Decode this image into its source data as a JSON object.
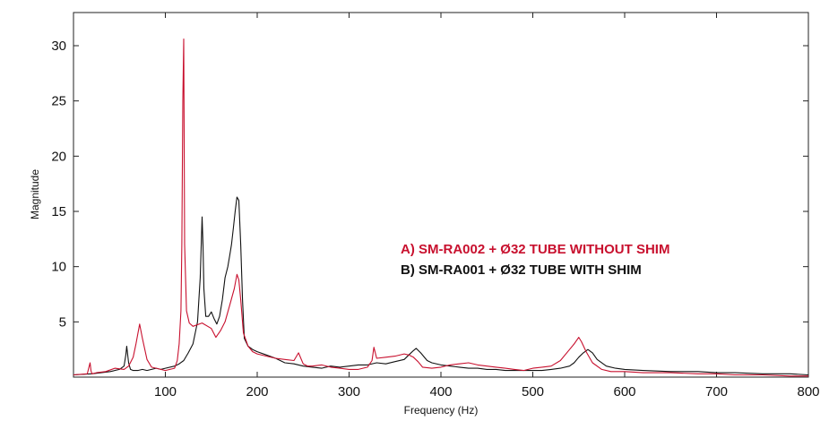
{
  "chart_data": {
    "type": "line",
    "title": "",
    "xlabel": "Frequency (Hz)",
    "ylabel": "Magnitude",
    "xlim": [
      0,
      800
    ],
    "ylim": [
      0,
      33
    ],
    "x_ticks": [
      100,
      200,
      300,
      400,
      500,
      600,
      700,
      800
    ],
    "y_ticks": [
      5,
      10,
      15,
      20,
      25,
      30
    ],
    "grid": false,
    "legend_position": "center-right",
    "series": [
      {
        "name": "A) SM-RA002 + Ø32 TUBE WITHOUT SHIM",
        "color": "#c8102e",
        "x": [
          0,
          15,
          18,
          19,
          20,
          25,
          35,
          45,
          55,
          60,
          65,
          68,
          72,
          75,
          80,
          85,
          90,
          95,
          100,
          105,
          110,
          113,
          115,
          117,
          118,
          119,
          120,
          121,
          123,
          126,
          130,
          140,
          150,
          155,
          160,
          165,
          170,
          175,
          178,
          180,
          182,
          185,
          190,
          195,
          200,
          210,
          220,
          230,
          240,
          245,
          250,
          255,
          260,
          270,
          280,
          290,
          300,
          310,
          320,
          325,
          327,
          330,
          340,
          350,
          360,
          365,
          370,
          375,
          380,
          390,
          400,
          410,
          420,
          430,
          440,
          450,
          460,
          470,
          480,
          490,
          500,
          510,
          520,
          530,
          540,
          545,
          550,
          553,
          558,
          565,
          575,
          585,
          600,
          620,
          650,
          680,
          700,
          720,
          750,
          780,
          800
        ],
        "y": [
          0.2,
          0.3,
          1.3,
          0.6,
          0.3,
          0.4,
          0.5,
          0.8,
          0.7,
          1.0,
          1.8,
          3.0,
          4.8,
          3.5,
          1.6,
          0.9,
          0.8,
          0.7,
          0.6,
          0.7,
          0.8,
          1.5,
          3.0,
          6.0,
          12.0,
          25.0,
          30.6,
          12.0,
          6.0,
          4.9,
          4.6,
          4.9,
          4.4,
          3.6,
          4.2,
          5.0,
          6.5,
          8.0,
          9.3,
          8.8,
          7.0,
          4.0,
          2.8,
          2.3,
          2.1,
          1.9,
          1.7,
          1.6,
          1.5,
          2.2,
          1.2,
          1.0,
          1.0,
          1.1,
          0.9,
          0.8,
          0.7,
          0.7,
          0.9,
          1.5,
          2.7,
          1.7,
          1.8,
          1.9,
          2.1,
          2.0,
          1.8,
          1.4,
          0.9,
          0.8,
          0.9,
          1.1,
          1.2,
          1.3,
          1.1,
          1.0,
          0.9,
          0.8,
          0.7,
          0.6,
          0.8,
          0.9,
          1.0,
          1.5,
          2.5,
          3.0,
          3.6,
          3.2,
          2.3,
          1.3,
          0.7,
          0.5,
          0.5,
          0.4,
          0.4,
          0.3,
          0.3,
          0.2,
          0.2,
          0.1,
          0.1
        ]
      },
      {
        "name": "B) SM-RA001 + Ø32 TUBE WITH SHIM",
        "color": "#111111",
        "x": [
          0,
          20,
          30,
          40,
          50,
          55,
          57,
          58,
          60,
          62,
          65,
          70,
          75,
          80,
          85,
          90,
          95,
          100,
          110,
          115,
          120,
          125,
          130,
          135,
          138,
          140,
          141,
          142,
          144,
          147,
          150,
          153,
          156,
          159,
          162,
          165,
          168,
          170,
          172,
          174,
          176,
          178,
          180,
          182,
          184,
          186,
          190,
          195,
          200,
          210,
          220,
          230,
          240,
          250,
          260,
          270,
          280,
          290,
          300,
          310,
          320,
          330,
          340,
          350,
          360,
          365,
          370,
          373,
          378,
          385,
          390,
          400,
          410,
          420,
          430,
          440,
          450,
          460,
          470,
          480,
          490,
          500,
          510,
          520,
          530,
          540,
          545,
          550,
          555,
          560,
          565,
          570,
          580,
          590,
          600,
          620,
          650,
          680,
          700,
          720,
          750,
          780,
          800
        ],
        "y": [
          0.2,
          0.3,
          0.4,
          0.5,
          0.7,
          1.0,
          2.0,
          2.8,
          1.3,
          0.7,
          0.6,
          0.6,
          0.7,
          0.6,
          0.7,
          0.8,
          0.7,
          0.8,
          1.0,
          1.2,
          1.5,
          2.2,
          3.0,
          5.0,
          9.0,
          14.5,
          12.0,
          8.0,
          5.5,
          5.5,
          5.9,
          5.3,
          4.8,
          5.5,
          7.0,
          9.0,
          10.0,
          11.0,
          12.0,
          13.5,
          15.0,
          16.3,
          16.0,
          12.0,
          7.0,
          3.5,
          2.8,
          2.5,
          2.3,
          2.0,
          1.7,
          1.3,
          1.2,
          1.0,
          0.9,
          0.8,
          1.0,
          0.9,
          1.0,
          1.1,
          1.1,
          1.3,
          1.2,
          1.4,
          1.6,
          2.0,
          2.4,
          2.6,
          2.2,
          1.5,
          1.3,
          1.1,
          1.0,
          0.9,
          0.8,
          0.8,
          0.7,
          0.7,
          0.6,
          0.6,
          0.6,
          0.6,
          0.6,
          0.7,
          0.8,
          1.0,
          1.3,
          1.8,
          2.2,
          2.5,
          2.2,
          1.6,
          1.0,
          0.8,
          0.7,
          0.6,
          0.5,
          0.5,
          0.4,
          0.4,
          0.3,
          0.3,
          0.2
        ]
      }
    ]
  }
}
